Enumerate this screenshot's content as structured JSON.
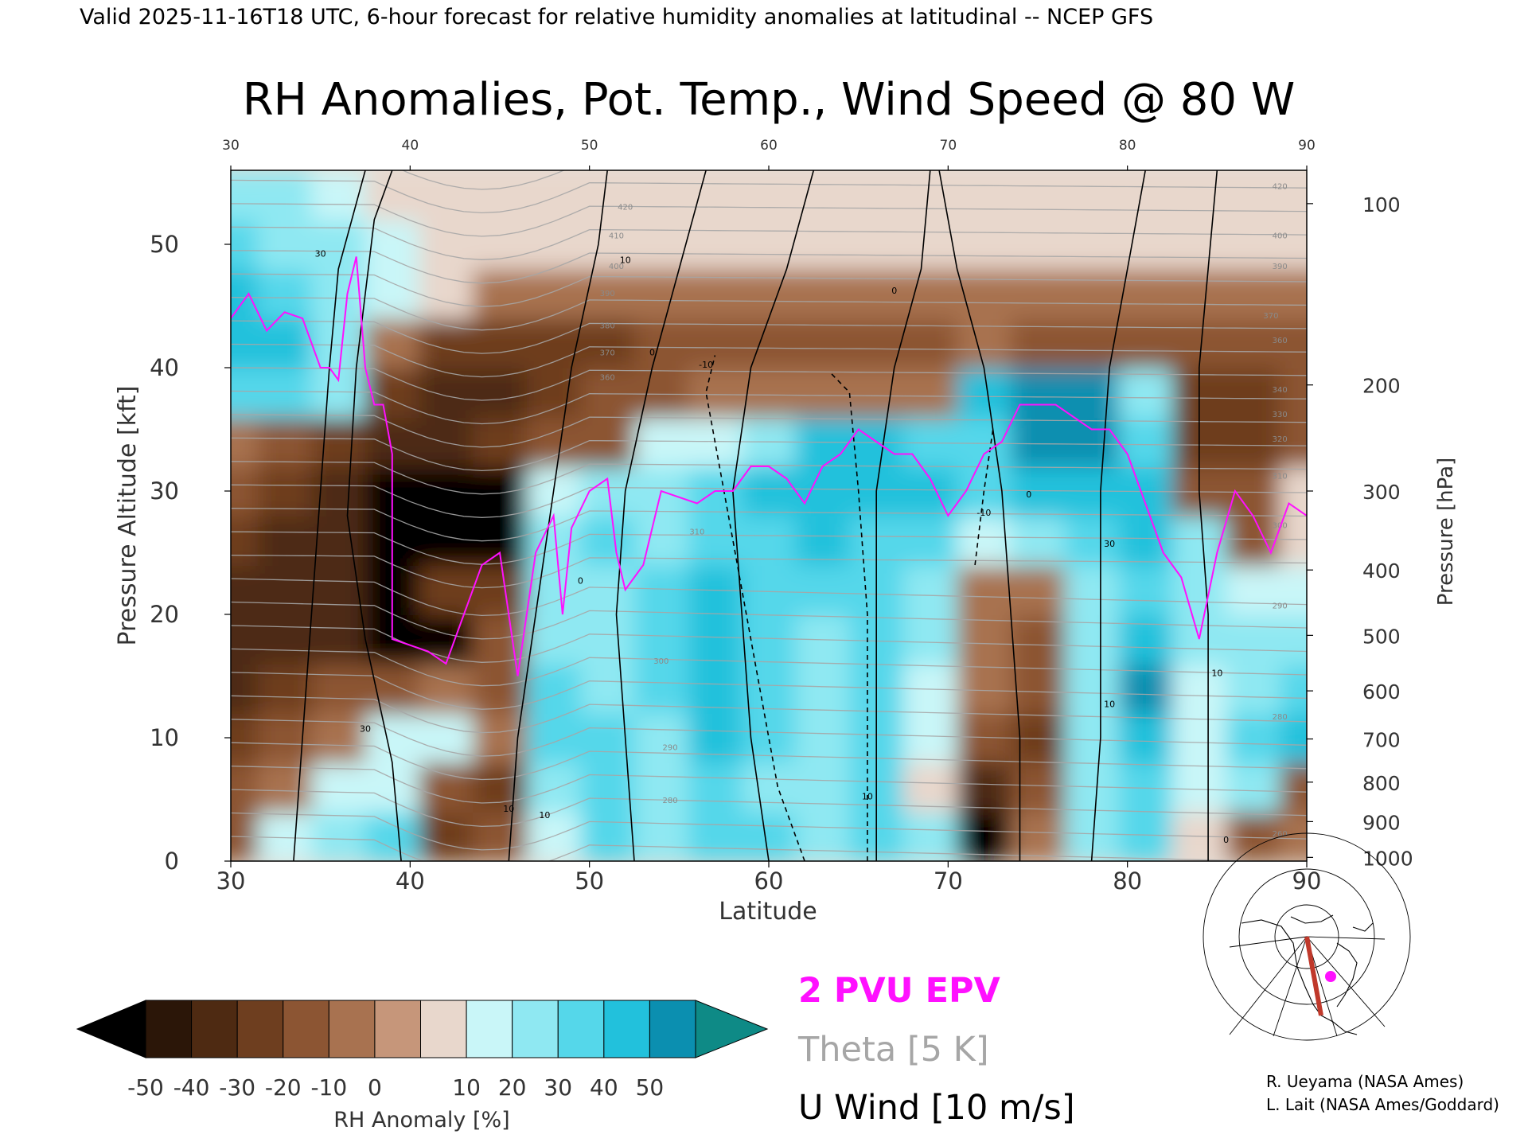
{
  "header": "Valid 2025-11-16T18 UTC, 6-hour forecast for relative humidity anomalies at latitudinal -- NCEP GFS",
  "chart_data": {
    "type": "heatmap",
    "title": "RH Anomalies, Pot. Temp., Wind Speed @ 80 W",
    "xlabel": "Latitude",
    "ylabel": "Pressure Altitude [kft]",
    "y2label": "Pressure [hPa]",
    "xlim": [
      30,
      90
    ],
    "ylim": [
      0,
      56
    ],
    "x_ticks": [
      30,
      40,
      50,
      60,
      70,
      80,
      90
    ],
    "y_ticks": [
      0,
      10,
      20,
      30,
      40,
      50
    ],
    "pressure_ticks": [
      {
        "label": "100",
        "kft": 53.3
      },
      {
        "label": "200",
        "kft": 38.6
      },
      {
        "label": "300",
        "kft": 30.0
      },
      {
        "label": "400",
        "kft": 23.6
      },
      {
        "label": "500",
        "kft": 18.3
      },
      {
        "label": "600",
        "kft": 13.8
      },
      {
        "label": "700",
        "kft": 9.9
      },
      {
        "label": "800",
        "kft": 6.4
      },
      {
        "label": "900",
        "kft": 3.2
      },
      {
        "label": "1000",
        "kft": 0.3
      }
    ],
    "colorbar": {
      "label": "RH Anomaly [%]",
      "ticks": [
        "-50",
        "-40",
        "-30",
        "-20",
        "-10",
        "0",
        "10",
        "20",
        "30",
        "40",
        "50"
      ],
      "colors": [
        "#2b1608",
        "#4e2a12",
        "#6e3e1f",
        "#8c5533",
        "#a87250",
        "#c6967a",
        "#e8d7cc",
        "#c9f6f8",
        "#8fe8f2",
        "#55d7ea",
        "#22c1dc",
        "#0b8fb0"
      ],
      "under_color": "#000000",
      "over_color": "#0e8a86"
    },
    "rh_anomaly_rows": {
      "latitudes": [
        30,
        33,
        36,
        39,
        42,
        45,
        48,
        51,
        54,
        57,
        60,
        63,
        66,
        69,
        72,
        75,
        78,
        81,
        84,
        87,
        90
      ],
      "altitudes_kft": [
        2,
        6,
        10,
        14,
        18,
        22,
        26,
        30,
        34,
        38,
        42,
        46,
        50,
        54
      ],
      "values": [
        [
          -20,
          10,
          20,
          30,
          -30,
          -20,
          10,
          30,
          20,
          30,
          30,
          20,
          30,
          20,
          -50,
          -10,
          20,
          30,
          0,
          -20,
          -10
        ],
        [
          -20,
          -10,
          10,
          10,
          -20,
          -30,
          20,
          30,
          20,
          30,
          20,
          20,
          30,
          0,
          -40,
          -20,
          20,
          30,
          10,
          20,
          -20
        ],
        [
          -30,
          -20,
          -10,
          10,
          10,
          -10,
          30,
          30,
          20,
          40,
          30,
          20,
          30,
          10,
          -20,
          -30,
          20,
          40,
          10,
          30,
          40
        ],
        [
          -40,
          -30,
          -20,
          -20,
          -10,
          -20,
          30,
          20,
          30,
          40,
          30,
          20,
          30,
          10,
          -10,
          -20,
          20,
          50,
          10,
          20,
          30
        ],
        [
          -40,
          -40,
          -40,
          -50,
          -50,
          -20,
          20,
          20,
          30,
          40,
          30,
          20,
          30,
          20,
          -10,
          -20,
          20,
          40,
          20,
          20,
          20
        ],
        [
          -40,
          -40,
          -40,
          -50,
          -30,
          -30,
          20,
          20,
          30,
          40,
          30,
          30,
          30,
          20,
          -10,
          -10,
          20,
          30,
          20,
          10,
          10
        ],
        [
          -30,
          -40,
          -40,
          -50,
          -50,
          -50,
          20,
          30,
          20,
          30,
          30,
          40,
          30,
          30,
          10,
          20,
          30,
          40,
          20,
          -20,
          0
        ],
        [
          -20,
          -30,
          -40,
          -50,
          -50,
          -50,
          10,
          20,
          20,
          30,
          40,
          40,
          40,
          40,
          30,
          40,
          40,
          40,
          -20,
          -20,
          0
        ],
        [
          -10,
          -20,
          -30,
          -40,
          -40,
          -30,
          -20,
          -20,
          10,
          10,
          20,
          40,
          40,
          30,
          30,
          50,
          50,
          30,
          -30,
          -30,
          -20
        ],
        [
          30,
          30,
          20,
          -30,
          -40,
          -40,
          -30,
          -20,
          -20,
          -10,
          -10,
          -10,
          -10,
          -10,
          40,
          50,
          50,
          20,
          -30,
          -30,
          -20
        ],
        [
          40,
          40,
          20,
          -10,
          -30,
          -30,
          -30,
          -30,
          -20,
          -20,
          -20,
          -20,
          -20,
          -20,
          -10,
          -20,
          -20,
          -20,
          -20,
          -20,
          -20
        ],
        [
          40,
          30,
          20,
          10,
          0,
          -10,
          -10,
          -10,
          -10,
          -10,
          -10,
          -10,
          -10,
          -10,
          -10,
          -10,
          -10,
          -10,
          -10,
          -10,
          -10
        ],
        [
          30,
          20,
          20,
          10,
          0,
          0,
          0,
          0,
          0,
          0,
          0,
          0,
          0,
          0,
          0,
          0,
          0,
          0,
          0,
          0,
          0
        ],
        [
          20,
          20,
          10,
          0,
          0,
          0,
          0,
          0,
          0,
          0,
          0,
          0,
          0,
          0,
          0,
          0,
          0,
          0,
          0,
          0,
          0
        ]
      ]
    },
    "theta_contours": {
      "interval_K": 5,
      "labels": [
        {
          "text": "420",
          "x": 52.0,
          "y": 52.8
        },
        {
          "text": "410",
          "x": 51.5,
          "y": 50.5
        },
        {
          "text": "400",
          "x": 51.5,
          "y": 48.0
        },
        {
          "text": "390",
          "x": 51.0,
          "y": 45.8
        },
        {
          "text": "380",
          "x": 51.0,
          "y": 43.2
        },
        {
          "text": "370",
          "x": 51.0,
          "y": 41.0
        },
        {
          "text": "360",
          "x": 51.0,
          "y": 39.0
        },
        {
          "text": "310",
          "x": 56.0,
          "y": 26.5
        },
        {
          "text": "300",
          "x": 54.0,
          "y": 16.0
        },
        {
          "text": "290",
          "x": 54.5,
          "y": 9.0
        },
        {
          "text": "280",
          "x": 54.5,
          "y": 4.7
        },
        {
          "text": "420",
          "x": 88.5,
          "y": 54.5
        },
        {
          "text": "400",
          "x": 88.5,
          "y": 50.5
        },
        {
          "text": "390",
          "x": 88.5,
          "y": 48.0
        },
        {
          "text": "370",
          "x": 88.0,
          "y": 44.0
        },
        {
          "text": "360",
          "x": 88.5,
          "y": 42.0
        },
        {
          "text": "340",
          "x": 88.5,
          "y": 38.0
        },
        {
          "text": "330",
          "x": 88.5,
          "y": 36.0
        },
        {
          "text": "320",
          "x": 88.5,
          "y": 34.0
        },
        {
          "text": "310",
          "x": 88.5,
          "y": 31.0
        },
        {
          "text": "300",
          "x": 88.5,
          "y": 27.0
        },
        {
          "text": "290",
          "x": 88.5,
          "y": 20.5
        },
        {
          "text": "280",
          "x": 88.5,
          "y": 11.5
        },
        {
          "text": "260",
          "x": 88.5,
          "y": 2.0
        }
      ]
    },
    "u_wind_contours": {
      "interval_m_s": 10,
      "lines": [
        {
          "style": "solid",
          "points": [
            [
              33.5,
              0
            ],
            [
              34,
              10
            ],
            [
              34.5,
              20
            ],
            [
              35,
              30
            ],
            [
              35.5,
              40
            ],
            [
              36,
              48
            ],
            [
              37.5,
              56
            ]
          ]
        },
        {
          "style": "solid",
          "points": [
            [
              39.5,
              0
            ],
            [
              39,
              8
            ],
            [
              37.5,
              18
            ],
            [
              36.5,
              28
            ],
            [
              37,
              40
            ],
            [
              38,
              52
            ],
            [
              39,
              56
            ]
          ]
        },
        {
          "style": "solid",
          "points": [
            [
              45.5,
              0
            ],
            [
              46,
              10
            ],
            [
              47,
              20
            ],
            [
              48,
              30
            ],
            [
              49,
              40
            ],
            [
              50.5,
              50
            ],
            [
              51,
              56
            ]
          ]
        },
        {
          "style": "solid",
          "points": [
            [
              52.5,
              0
            ],
            [
              52,
              10
            ],
            [
              51.5,
              20
            ],
            [
              52,
              30
            ],
            [
              53.5,
              40
            ],
            [
              55,
              48
            ],
            [
              56.5,
              56
            ]
          ]
        },
        {
          "style": "solid",
          "points": [
            [
              60,
              0
            ],
            [
              59,
              10
            ],
            [
              58.5,
              20
            ],
            [
              58,
              30
            ],
            [
              59,
              40
            ],
            [
              61,
              48
            ],
            [
              62.5,
              56
            ]
          ]
        },
        {
          "style": "dashed",
          "points": [
            [
              62,
              0
            ],
            [
              60.5,
              6
            ],
            [
              59.5,
              14
            ],
            [
              58.5,
              22
            ],
            [
              57.5,
              30
            ],
            [
              56.5,
              38
            ],
            [
              57,
              41
            ]
          ]
        },
        {
          "style": "dashed",
          "points": [
            [
              65.5,
              0
            ],
            [
              65.5,
              10
            ],
            [
              65.5,
              20
            ],
            [
              65,
              30
            ],
            [
              64.5,
              38
            ],
            [
              63.5,
              39.5
            ]
          ]
        },
        {
          "style": "solid",
          "points": [
            [
              66,
              0
            ],
            [
              66,
              10
            ],
            [
              66,
              20
            ],
            [
              66,
              30
            ],
            [
              67,
              40
            ],
            [
              68.5,
              48
            ],
            [
              69,
              56
            ]
          ]
        },
        {
          "style": "dashed",
          "points": [
            [
              71.5,
              24
            ],
            [
              72,
              30
            ],
            [
              72.5,
              35
            ]
          ]
        },
        {
          "style": "solid",
          "points": [
            [
              74,
              0
            ],
            [
              74,
              10
            ],
            [
              73.5,
              20
            ],
            [
              73,
              30
            ],
            [
              72,
              40
            ],
            [
              70.5,
              48
            ],
            [
              69.5,
              56
            ]
          ]
        },
        {
          "style": "solid",
          "points": [
            [
              78,
              0
            ],
            [
              78.5,
              10
            ],
            [
              78.5,
              20
            ],
            [
              78.5,
              30
            ],
            [
              79,
              40
            ],
            [
              80,
              48
            ],
            [
              81,
              56
            ]
          ]
        },
        {
          "style": "solid",
          "points": [
            [
              84.5,
              0
            ],
            [
              84.5,
              10
            ],
            [
              84.5,
              20
            ],
            [
              84,
              30
            ],
            [
              84,
              40
            ],
            [
              84.5,
              48
            ],
            [
              85,
              56
            ]
          ]
        }
      ],
      "labels": [
        {
          "text": "30",
          "x": 35.0,
          "y": 49.0
        },
        {
          "text": "10",
          "x": 52.0,
          "y": 48.5
        },
        {
          "text": "0",
          "x": 53.5,
          "y": 41.0
        },
        {
          "text": "-10",
          "x": 56.5,
          "y": 40.0
        },
        {
          "text": "0",
          "x": 67.0,
          "y": 46.0
        },
        {
          "text": "0",
          "x": 49.5,
          "y": 22.5
        },
        {
          "text": "30",
          "x": 37.5,
          "y": 10.5
        },
        {
          "text": "10",
          "x": 45.5,
          "y": 4.0
        },
        {
          "text": "10",
          "x": 47.5,
          "y": 3.5
        },
        {
          "text": "10",
          "x": 65.5,
          "y": 5.0
        },
        {
          "text": "-10",
          "x": 72.0,
          "y": 28.0
        },
        {
          "text": "0",
          "x": 74.5,
          "y": 29.5
        },
        {
          "text": "30",
          "x": 79.0,
          "y": 25.5
        },
        {
          "text": "10",
          "x": 79.0,
          "y": 12.5
        },
        {
          "text": "10",
          "x": 85.0,
          "y": 15.0
        },
        {
          "text": "0",
          "x": 85.5,
          "y": 1.5
        }
      ]
    },
    "epv_2pvu": [
      [
        30,
        44
      ],
      [
        31,
        46
      ],
      [
        32,
        43
      ],
      [
        33,
        44.5
      ],
      [
        34,
        44
      ],
      [
        35,
        40
      ],
      [
        35.5,
        40
      ],
      [
        36,
        39
      ],
      [
        36.5,
        46
      ],
      [
        37,
        49
      ],
      [
        37.5,
        40
      ],
      [
        38,
        37
      ],
      [
        38.5,
        37
      ],
      [
        39,
        33
      ],
      [
        39,
        18
      ],
      [
        41,
        17
      ],
      [
        42,
        16
      ],
      [
        43,
        20
      ],
      [
        44,
        24
      ],
      [
        45,
        25
      ],
      [
        46,
        15
      ],
      [
        47,
        25
      ],
      [
        48,
        28
      ],
      [
        48.5,
        20
      ],
      [
        49,
        27
      ],
      [
        50,
        30
      ],
      [
        51,
        31
      ],
      [
        51.5,
        25
      ],
      [
        52,
        22
      ],
      [
        53,
        24
      ],
      [
        54,
        30
      ],
      [
        56,
        29
      ],
      [
        57,
        30
      ],
      [
        58,
        30
      ],
      [
        59,
        32
      ],
      [
        60,
        32
      ],
      [
        61,
        31
      ],
      [
        62,
        29
      ],
      [
        63,
        32
      ],
      [
        64,
        33
      ],
      [
        65,
        35
      ],
      [
        66,
        34
      ],
      [
        67,
        33
      ],
      [
        68,
        33
      ],
      [
        69,
        31
      ],
      [
        70,
        28
      ],
      [
        71,
        30
      ],
      [
        72,
        33
      ],
      [
        73,
        34
      ],
      [
        74,
        37
      ],
      [
        76,
        37
      ],
      [
        78,
        35
      ],
      [
        79,
        35
      ],
      [
        80,
        33
      ],
      [
        82,
        25
      ],
      [
        83,
        23
      ],
      [
        84,
        18
      ],
      [
        85,
        25
      ],
      [
        86,
        30
      ],
      [
        87,
        28
      ],
      [
        88,
        25
      ],
      [
        89,
        29
      ],
      [
        90,
        28
      ]
    ],
    "legend": [
      {
        "label": "2 PVU EPV",
        "color": "#ff10ff"
      },
      {
        "label": "Theta [5 K]",
        "color": "#a6a6a6"
      },
      {
        "label": "U Wind [10 m/s]",
        "color": "#000000"
      }
    ]
  },
  "credits": [
    "R. Ueyama (NASA Ames)",
    "L. Lait (NASA Ames/Goddard)"
  ],
  "colors": {
    "epv": "#ff10ff",
    "theta": "#a6a6a6",
    "wind": "#000000",
    "inset_track": "#c0392b",
    "inset_marker": "#ff10ff"
  }
}
